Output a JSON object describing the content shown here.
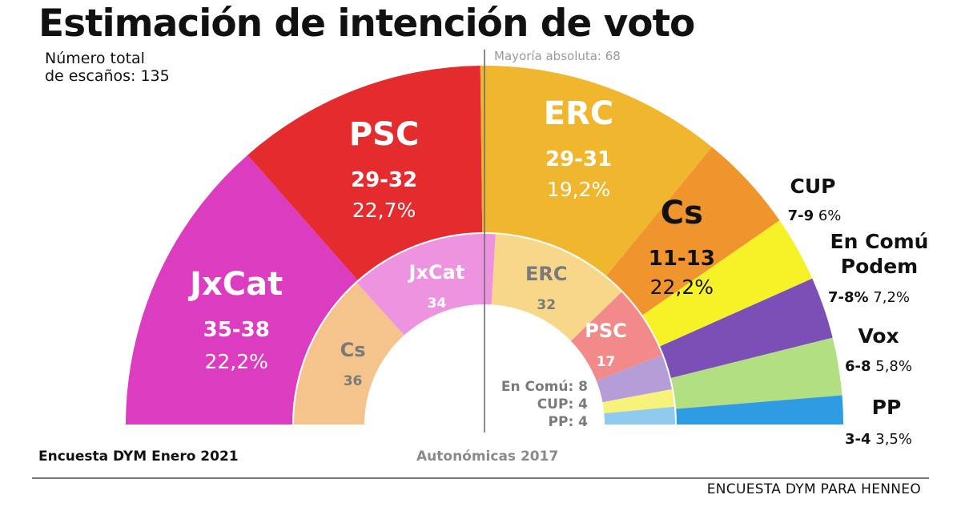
{
  "title": "Estimación de intención de voto",
  "total_seats_label": [
    "Número total",
    "de escaños: 135"
  ],
  "majority_label": "Mayoría absoluta: 68",
  "footer_left": "Encuesta DYM Enero 2021",
  "footer_mid": "Autonómicas 2017",
  "source": "ENCUESTA DYM PARA HENNEO",
  "chart_data": [
    {
      "type": "pie",
      "subtitle": "Encuesta DYM Enero 2021",
      "total": 135,
      "series": [
        {
          "name": "JxCat",
          "seats": "35-38",
          "pct": "22,2%",
          "value": 36.5,
          "color": "#dc3cc0"
        },
        {
          "name": "PSC",
          "seats": "29-32",
          "pct": "22,7%",
          "value": 30.5,
          "color": "#e42c2e"
        },
        {
          "name": "ERC",
          "seats": "29-31",
          "pct": "19,2%",
          "value": 30,
          "color": "#f0b72e"
        },
        {
          "name": "Cs",
          "seats": "11-13",
          "pct": "22,2%",
          "value": 12,
          "color": "#f0952e"
        },
        {
          "name": "CUP",
          "seats": "7-9",
          "pct": "6%",
          "value": 8,
          "color": "#f7f127"
        },
        {
          "name": "En Comú Podem",
          "seats": "7-8%",
          "pct": "7,2%",
          "value": 7.5,
          "color": "#7b4fb5"
        },
        {
          "name": "Vox",
          "seats": "6-8",
          "pct": "5,8%",
          "value": 7,
          "color": "#b2df82"
        },
        {
          "name": "PP",
          "seats": "3-4",
          "pct": "3,5%",
          "value": 3.5,
          "color": "#2f9be3"
        }
      ]
    },
    {
      "type": "pie",
      "subtitle": "Autonómicas 2017",
      "total": 135,
      "series": [
        {
          "name": "Cs",
          "value": 36,
          "color": "#f5c48c"
        },
        {
          "name": "JxCat",
          "value": 34,
          "color": "#ee93e0"
        },
        {
          "name": "ERC",
          "value": 32,
          "color": "#f7d88a"
        },
        {
          "name": "PSC",
          "value": 17,
          "color": "#f28a8a"
        },
        {
          "name": "En Comú",
          "value": 8,
          "color": "#b59ed8"
        },
        {
          "name": "CUP",
          "value": 4,
          "color": "#f7f27a"
        },
        {
          "name": "PP",
          "value": 4,
          "color": "#8fcaef"
        }
      ]
    }
  ]
}
